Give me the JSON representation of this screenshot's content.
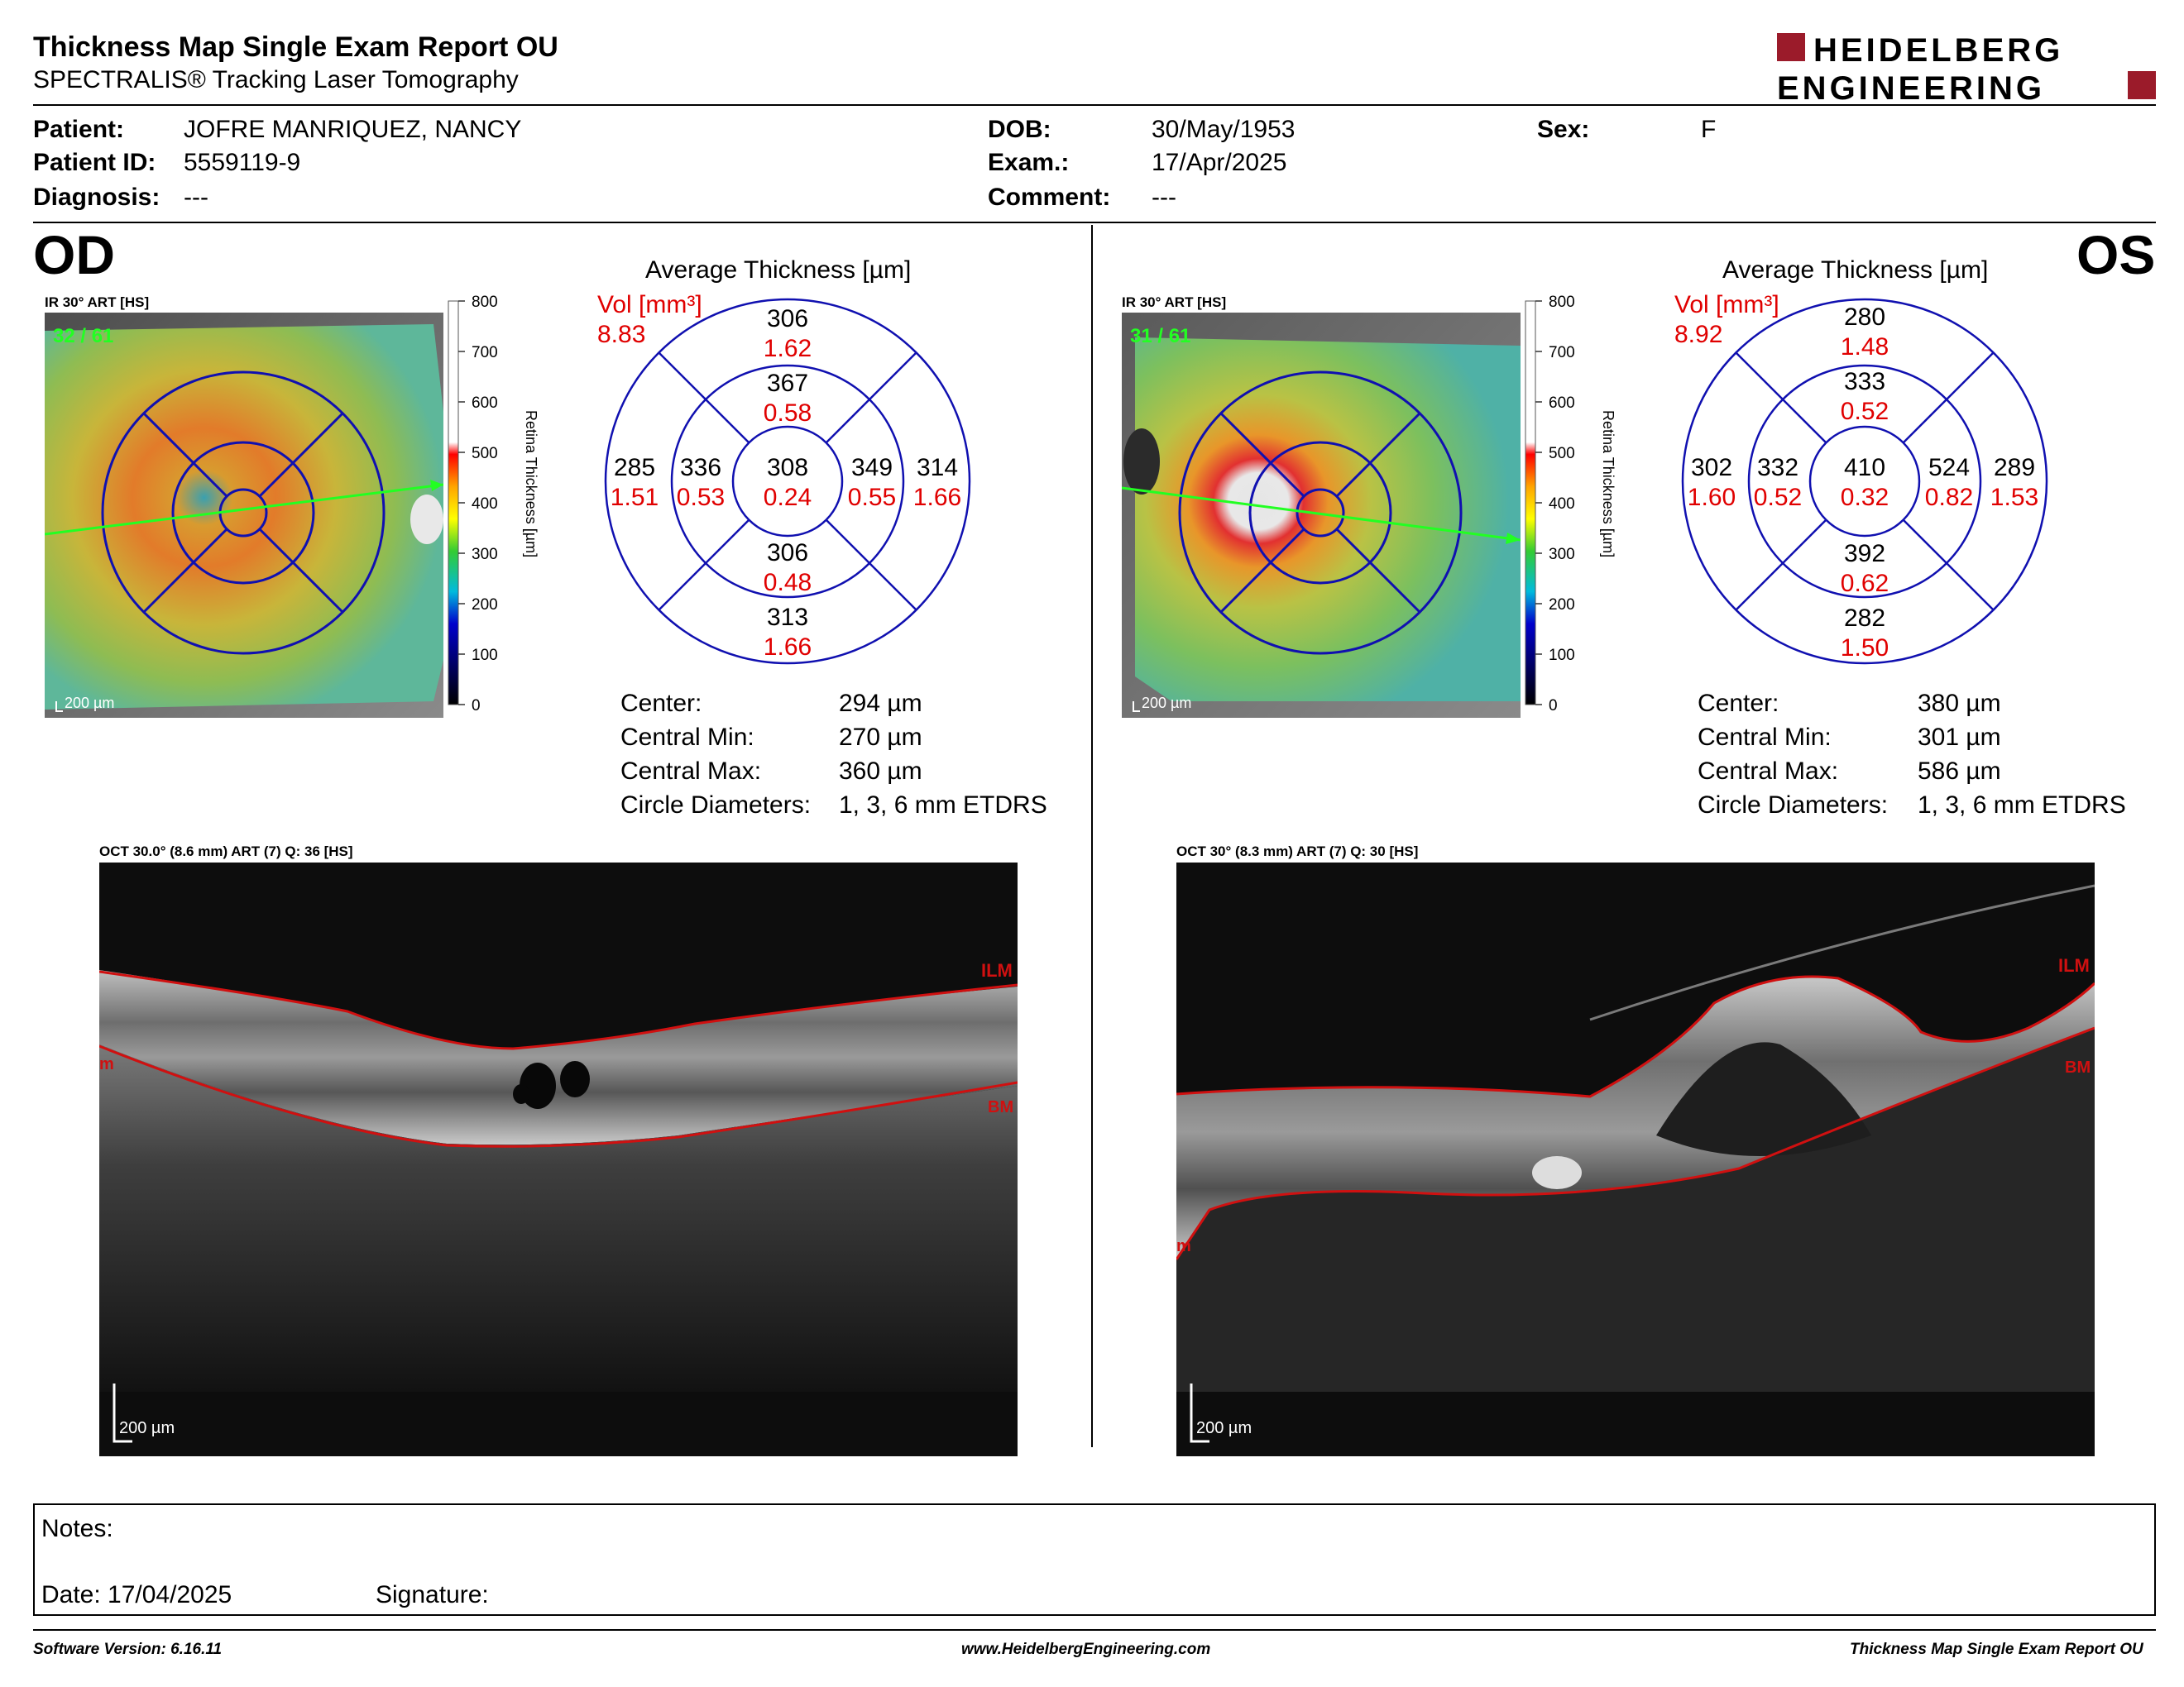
{
  "header": {
    "title": "Thickness Map Single Exam Report OU",
    "subtitle": "SPECTRALIS® Tracking Laser Tomography",
    "brand_line1": "HEIDELBERG",
    "brand_line2": "ENGINEERING",
    "brand_color": "#9b1b2a"
  },
  "patient": {
    "patient_label": "Patient:",
    "patient_name": "JOFRE MANRIQUEZ, NANCY",
    "id_label": "Patient ID:",
    "id_value": "5559119-9",
    "diagnosis_label": "Diagnosis:",
    "diagnosis_value": "---",
    "dob_label": "DOB:",
    "dob_value": "30/May/1953",
    "exam_label": "Exam.:",
    "exam_value": "17/Apr/2025",
    "comment_label": "Comment:",
    "comment_value": "---",
    "sex_label": "Sex:",
    "sex_value": "F"
  },
  "colorbar": {
    "ticks": [
      "800",
      "700",
      "600",
      "500",
      "400",
      "300",
      "200",
      "100",
      "0"
    ],
    "label": "Retina Thickness [µm]"
  },
  "od": {
    "eye_label": "OD",
    "ir_label": "IR 30° ART [HS]",
    "frames": "32 / 61",
    "scale_label": "200 µm",
    "chart_title": "Average Thickness [µm]",
    "vol_label": "Vol [mm³]",
    "vol_value": "8.83",
    "sectors": {
      "center": {
        "t": "308",
        "v": "0.24"
      },
      "inner_sup": {
        "t": "367",
        "v": "0.58"
      },
      "inner_inf": {
        "t": "306",
        "v": "0.48"
      },
      "inner_left": {
        "t": "336",
        "v": "0.53"
      },
      "inner_right": {
        "t": "349",
        "v": "0.55"
      },
      "outer_sup": {
        "t": "306",
        "v": "1.62"
      },
      "outer_inf": {
        "t": "313",
        "v": "1.66"
      },
      "outer_left": {
        "t": "285",
        "v": "1.51"
      },
      "outer_right": {
        "t": "314",
        "v": "1.66"
      }
    },
    "stats": [
      {
        "label": "Center:",
        "value": "294 µm"
      },
      {
        "label": "Central Min:",
        "value": "270 µm"
      },
      {
        "label": "Central Max:",
        "value": "360 µm"
      },
      {
        "label": "Circle Diameters:",
        "value": "1, 3, 6 mm ETDRS"
      }
    ],
    "oct_label": "OCT 30.0° (8.6 mm) ART (7) Q: 36 [HS]",
    "ilm_label": "ILM",
    "bm_label": "BM",
    "left_mark": "m",
    "oct_scale_label": "200 µm"
  },
  "os": {
    "eye_label": "OS",
    "ir_label": "IR 30° ART [HS]",
    "frames": "31 / 61",
    "scale_label": "200 µm",
    "chart_title": "Average Thickness [µm]",
    "vol_label": "Vol [mm³]",
    "vol_value": "8.92",
    "sectors": {
      "center": {
        "t": "410",
        "v": "0.32"
      },
      "inner_sup": {
        "t": "333",
        "v": "0.52"
      },
      "inner_inf": {
        "t": "392",
        "v": "0.62"
      },
      "inner_left": {
        "t": "332",
        "v": "0.52"
      },
      "inner_right": {
        "t": "524",
        "v": "0.82"
      },
      "outer_sup": {
        "t": "280",
        "v": "1.48"
      },
      "outer_inf": {
        "t": "282",
        "v": "1.50"
      },
      "outer_left": {
        "t": "302",
        "v": "1.60"
      },
      "outer_right": {
        "t": "289",
        "v": "1.53"
      }
    },
    "stats": [
      {
        "label": "Center:",
        "value": "380 µm"
      },
      {
        "label": "Central Min:",
        "value": "301 µm"
      },
      {
        "label": "Central Max:",
        "value": "586 µm"
      },
      {
        "label": "Circle Diameters:",
        "value": "1, 3, 6 mm ETDRS"
      }
    ],
    "oct_label": "OCT 30° (8.3 mm) ART (7) Q: 30 [HS]",
    "ilm_label": "ILM",
    "bm_label": "BM",
    "left_mark": "m",
    "oct_scale_label": "200 µm"
  },
  "notes": {
    "notes_label": "Notes:",
    "date_label": "Date: 17/04/2025",
    "signature_label": "Signature:"
  },
  "footer": {
    "software": "Software Version: 6.16.11",
    "website": "www.HeidelbergEngineering.com",
    "report": "Thickness Map Single Exam Report OU"
  }
}
